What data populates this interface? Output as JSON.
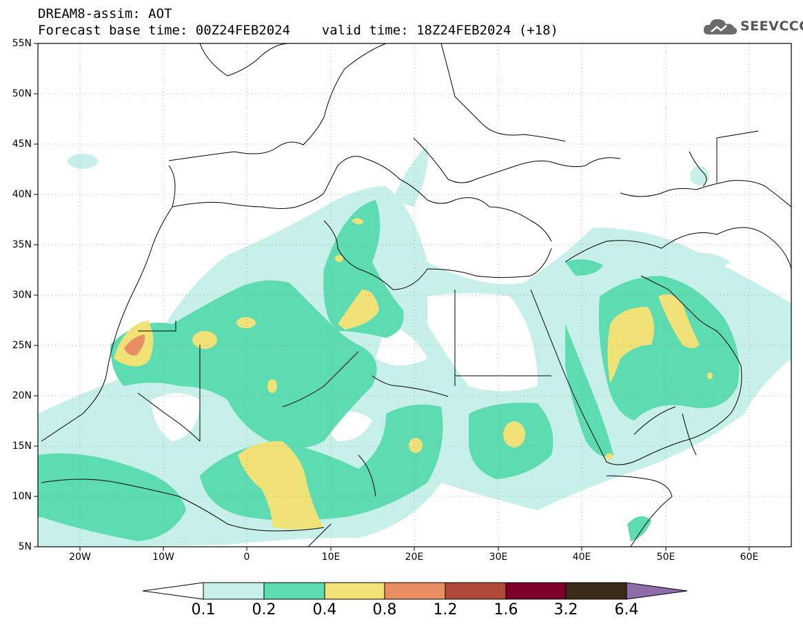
{
  "title": {
    "line1": "DREAM8-assim: AOT",
    "line2": "Forecast base time: 00Z24FEB2024    valid time: 18Z24FEB2024 (+18)"
  },
  "logo": {
    "text": "SEEVCCC",
    "icon": "cloud-icon"
  },
  "map": {
    "lon_range": [
      -25,
      65
    ],
    "lat_range": [
      5,
      55
    ],
    "grid": "dotted",
    "lat_labels": [
      "55N",
      "50N",
      "45N",
      "40N",
      "35N",
      "30N",
      "25N",
      "20N",
      "15N",
      "10N",
      "5N"
    ],
    "lon_labels": [
      "20W",
      "10W",
      "0",
      "10E",
      "20E",
      "30E",
      "40E",
      "50E",
      "60E"
    ]
  },
  "colorbar": {
    "levels": [
      "0.1",
      "0.2",
      "0.4",
      "0.8",
      "1.2",
      "1.6",
      "3.2",
      "6.4"
    ],
    "colors": [
      "#c8f0ea",
      "#5ddcb2",
      "#f1e277",
      "#e98e63",
      "#b04a38",
      "#7a0028",
      "#3a2a18",
      "#8d6ca8"
    ]
  }
}
